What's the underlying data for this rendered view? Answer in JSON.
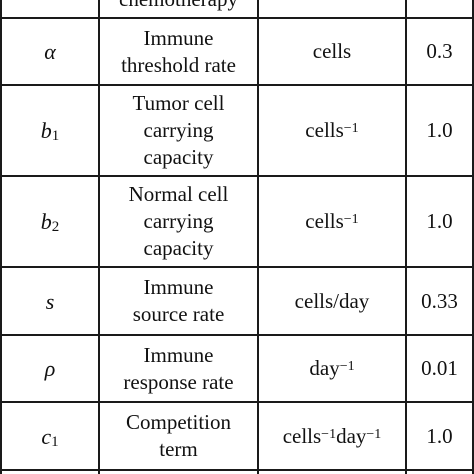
{
  "table": {
    "partial_top_text": "chemotherapy",
    "rows": [
      {
        "symbol": "α",
        "symbol_sub": "",
        "description_lines": [
          "Immune",
          "threshold rate"
        ],
        "unit": "cells",
        "unit_sup": "",
        "unit2": "",
        "unit2_sup": "",
        "value": "0.3"
      },
      {
        "symbol": "b",
        "symbol_sub": "1",
        "description_lines": [
          "Tumor cell",
          "carrying",
          "capacity"
        ],
        "unit": "cells",
        "unit_sup": "−1",
        "unit2": "",
        "unit2_sup": "",
        "value": "1.0"
      },
      {
        "symbol": "b",
        "symbol_sub": "2",
        "description_lines": [
          "Normal cell",
          "carrying",
          "capacity"
        ],
        "unit": "cells",
        "unit_sup": "−1",
        "unit2": "",
        "unit2_sup": "",
        "value": "1.0"
      },
      {
        "symbol": "s",
        "symbol_sub": "",
        "description_lines": [
          "Immune",
          "source rate"
        ],
        "unit": "cells/day",
        "unit_sup": "",
        "unit2": "",
        "unit2_sup": "",
        "value": "0.33"
      },
      {
        "symbol": "ρ",
        "symbol_sub": "",
        "description_lines": [
          "Immune",
          "response rate"
        ],
        "unit": "day",
        "unit_sup": "−1",
        "unit2": "",
        "unit2_sup": "",
        "value": "0.01"
      },
      {
        "symbol": "c",
        "symbol_sub": "1",
        "description_lines": [
          "Competition",
          "term"
        ],
        "unit": "cells",
        "unit_sup": "−1",
        "unit2": "day",
        "unit2_sup": "−1",
        "value": "1.0"
      }
    ]
  }
}
